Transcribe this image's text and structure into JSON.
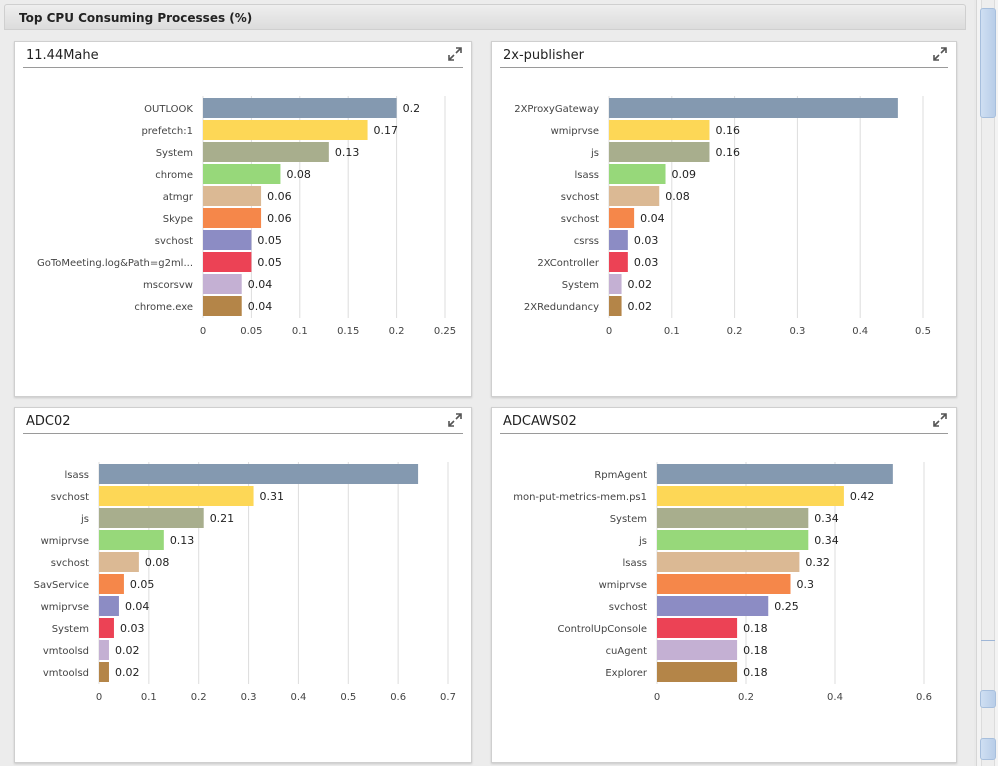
{
  "section": {
    "title": "Top CPU Consuming Processes (%)"
  },
  "colors": [
    "#8499b0",
    "#fdd756",
    "#a8ae8d",
    "#97d87a",
    "#dbb994",
    "#f5874a",
    "#8c8cc4",
    "#ec4255",
    "#c4b0d3",
    "#b48548"
  ],
  "panels": [
    {
      "title": "11.44Mahe",
      "icon": "expand-icon"
    },
    {
      "title": "2x-publisher",
      "icon": "expand-icon"
    },
    {
      "title": "ADC02",
      "icon": "expand-icon"
    },
    {
      "title": "ADCAWS02",
      "icon": "expand-icon"
    }
  ],
  "chart_data": [
    {
      "type": "bar",
      "orientation": "horizontal",
      "title": "11.44Mahe",
      "categories": [
        "OUTLOOK",
        "prefetch:1",
        "System",
        "chrome",
        "atmgr",
        "Skype",
        "svchost",
        "GoToMeeting.log&Path=g2ml...",
        "mscorsvw",
        "chrome.exe"
      ],
      "values": [
        0.2,
        0.17,
        0.13,
        0.08,
        0.06,
        0.06,
        0.05,
        0.05,
        0.04,
        0.04
      ],
      "labels": [
        "0.2",
        "0.17",
        "0.13",
        "0.08",
        "0.06",
        "0.06",
        "0.05",
        "0.05",
        "0.04",
        "0.04"
      ],
      "xlim": [
        0,
        0.25
      ],
      "ticks": [
        "0",
        "0.05",
        "0.1",
        "0.15",
        "0.2",
        "0.25"
      ],
      "tick_values": [
        0,
        0.05,
        0.1,
        0.15,
        0.2,
        0.25
      ]
    },
    {
      "type": "bar",
      "orientation": "horizontal",
      "title": "2x-publisher",
      "categories": [
        "2XProxyGateway",
        "wmiprvse",
        "js",
        "lsass",
        "svchost",
        "svchost",
        "csrss",
        "2XController",
        "System",
        "2XRedundancy"
      ],
      "values": [
        0.46,
        0.16,
        0.16,
        0.09,
        0.08,
        0.04,
        0.03,
        0.03,
        0.02,
        0.02
      ],
      "labels": [
        "",
        "0.16",
        "0.16",
        "0.09",
        "0.08",
        "0.04",
        "0.03",
        "0.03",
        "0.02",
        "0.02"
      ],
      "xlim": [
        0,
        0.5
      ],
      "ticks": [
        "0",
        "0.1",
        "0.2",
        "0.3",
        "0.4",
        "0.5"
      ],
      "tick_values": [
        0,
        0.1,
        0.2,
        0.3,
        0.4,
        0.5
      ]
    },
    {
      "type": "bar",
      "orientation": "horizontal",
      "title": "ADC02",
      "categories": [
        "lsass",
        "svchost",
        "js",
        "wmiprvse",
        "svchost",
        "SavService",
        "wmiprvse",
        "System",
        "vmtoolsd",
        "vmtoolsd"
      ],
      "values": [
        0.64,
        0.31,
        0.21,
        0.13,
        0.08,
        0.05,
        0.04,
        0.03,
        0.02,
        0.02
      ],
      "labels": [
        "",
        "0.31",
        "0.21",
        "0.13",
        "0.08",
        "0.05",
        "0.04",
        "0.03",
        "0.02",
        "0.02"
      ],
      "xlim": [
        0,
        0.7
      ],
      "ticks": [
        "0",
        "0.1",
        "0.2",
        "0.3",
        "0.4",
        "0.5",
        "0.6",
        "0.7"
      ],
      "tick_values": [
        0,
        0.1,
        0.2,
        0.3,
        0.4,
        0.5,
        0.6,
        0.7
      ]
    },
    {
      "type": "bar",
      "orientation": "horizontal",
      "title": "ADCAWS02",
      "categories": [
        "RpmAgent",
        "mon-put-metrics-mem.ps1",
        "System",
        "js",
        "lsass",
        "wmiprvse",
        "svchost",
        "ControlUpConsole",
        "cuAgent",
        "Explorer"
      ],
      "values": [
        0.53,
        0.42,
        0.34,
        0.34,
        0.32,
        0.3,
        0.25,
        0.18,
        0.18,
        0.18
      ],
      "labels": [
        "",
        "0.42",
        "0.34",
        "0.34",
        "0.32",
        "0.3",
        "0.25",
        "0.18",
        "0.18",
        "0.18"
      ],
      "xlim": [
        0,
        0.6
      ],
      "ticks": [
        "0",
        "0.2",
        "0.4",
        "0.6"
      ],
      "tick_values": [
        0,
        0.2,
        0.4,
        0.6
      ]
    }
  ]
}
